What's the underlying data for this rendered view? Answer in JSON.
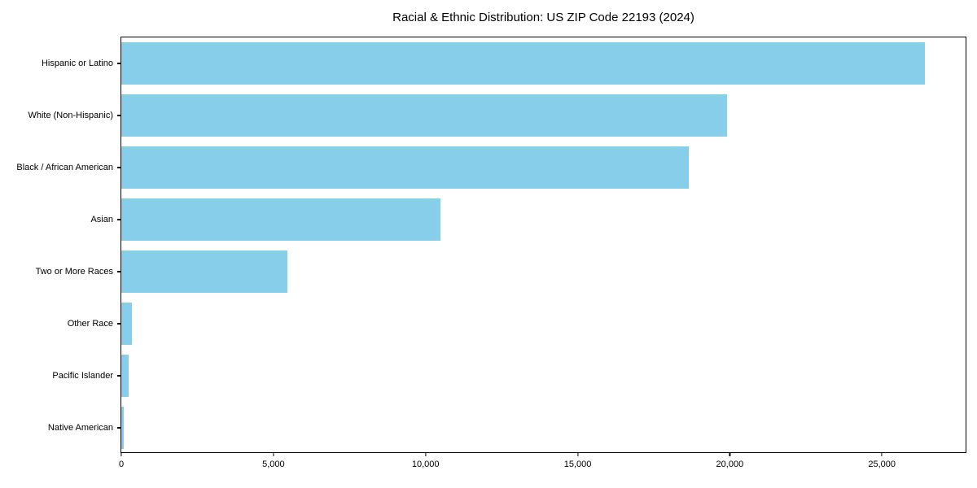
{
  "figure": {
    "background_color": "#ffffff",
    "text_color": "#000000"
  },
  "chart_data": {
    "type": "bar",
    "orientation": "horizontal",
    "title": "Racial & Ethnic Distribution: US ZIP Code 22193 (2024)",
    "xlabel": "",
    "ylabel": "",
    "categories": [
      "Hispanic or Latino",
      "White (Non-Hispanic)",
      "Black / African American",
      "Asian",
      "Two or More Races",
      "Other Race",
      "Pacific Islander",
      "Native American"
    ],
    "values": [
      26400,
      19900,
      18650,
      10500,
      5450,
      350,
      250,
      90
    ],
    "xlim": [
      0,
      27750
    ],
    "x_ticks": [
      {
        "value": 0,
        "label": "0"
      },
      {
        "value": 5000,
        "label": "5,000"
      },
      {
        "value": 10000,
        "label": "10,000"
      },
      {
        "value": 15000,
        "label": "15,000"
      },
      {
        "value": 20000,
        "label": "20,000"
      },
      {
        "value": 25000,
        "label": "25,000"
      }
    ],
    "bar_color": "#87CEEB",
    "grid": false,
    "legend": null
  }
}
